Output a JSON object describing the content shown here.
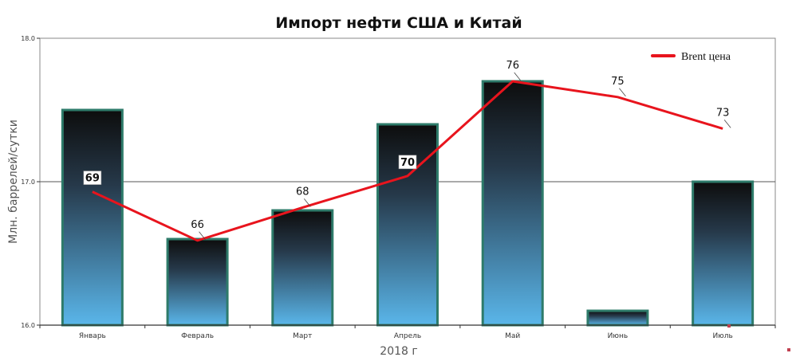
{
  "chart_data": {
    "type": "bar",
    "title": "Импорт нефти США и Китай",
    "xlabel": "2018 г",
    "ylabel": "Млн. баррелей/сутки",
    "categories": [
      "Январь",
      "Февраль",
      "Март",
      "Апрель",
      "Май",
      "Июнь",
      "Июль"
    ],
    "ylim": [
      16.0,
      18.0
    ],
    "yticks": [
      "16.0",
      "17.0",
      "18.0"
    ],
    "series": [
      {
        "kind": "bar",
        "values": [
          17.5,
          16.6,
          16.8,
          17.4,
          17.7,
          16.1,
          17.0
        ]
      },
      {
        "kind": "line",
        "name": "Brent цена",
        "labels": [
          "69",
          "66",
          "68",
          "70",
          "76",
          "75",
          "73"
        ],
        "values": [
          16.93,
          16.59,
          16.82,
          17.04,
          17.7,
          17.59,
          17.37
        ]
      }
    ],
    "grid": "horizontal line at 17.0",
    "legend_position": "top-right",
    "colors": {
      "bar_top": "#0d0d0d",
      "bar_bottom": "#5ab6ea",
      "bar_border": "#2e7b6a",
      "line": "#e8141d",
      "axis": "#333333"
    }
  }
}
